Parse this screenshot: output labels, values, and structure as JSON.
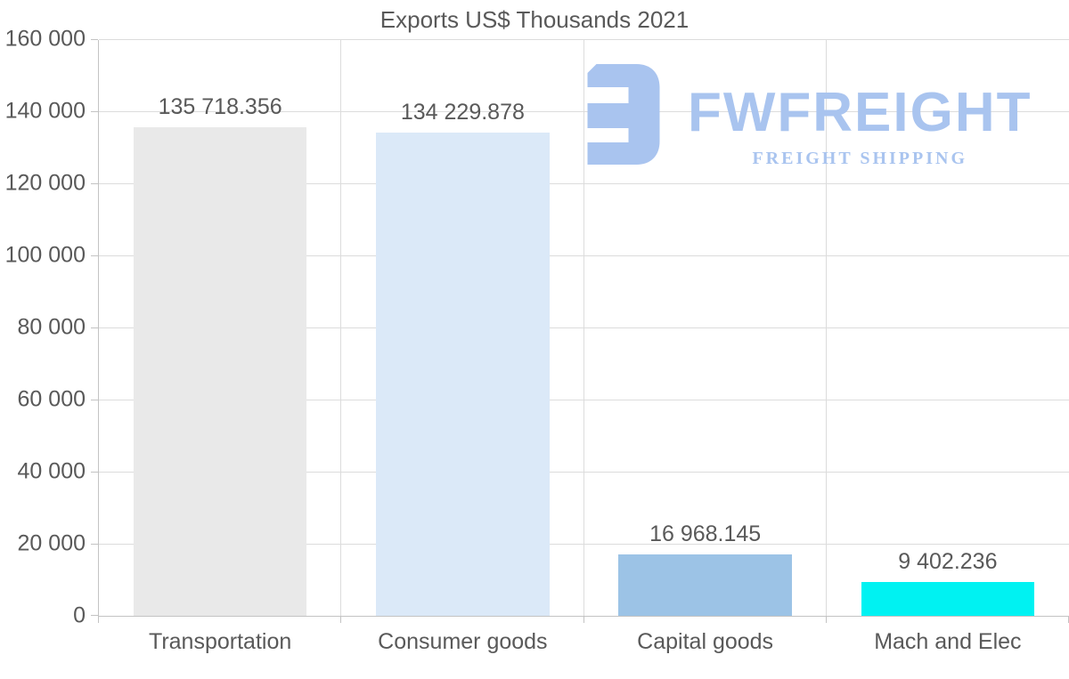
{
  "title": "Exports US$ Thousands 2021",
  "logo": {
    "wordmark": "FWFREIGHT",
    "subtitle": "FREIGHT SHIPPING",
    "color": "#a9c4ef"
  },
  "chart_data": {
    "type": "bar",
    "title": "Exports US$ Thousands 2021",
    "categories": [
      "Transportation",
      "Consumer goods",
      "Capital goods",
      "Mach and Elec"
    ],
    "values": [
      135718.356,
      134229.878,
      16968.145,
      9402.236
    ],
    "value_labels": [
      "135 718.356",
      "134 229.878",
      "16 968.145",
      "9 402.236"
    ],
    "bar_colors": [
      "#e9e9e9",
      "#dbe9f8",
      "#9cc3e6",
      "#00f2f2"
    ],
    "xlabel": "",
    "ylabel": "",
    "ylim": [
      0,
      160000
    ],
    "ytick_step": 20000,
    "ytick_labels": [
      "0",
      "20 000",
      "40 000",
      "60 000",
      "80 000",
      "100 000",
      "120 000",
      "140 000",
      "160 000"
    ],
    "grid": true,
    "legend": false
  },
  "colors": {
    "background": "#ffffff",
    "grid": "#dcdcdc",
    "axis": "#c3c3c3",
    "text": "#595959"
  }
}
